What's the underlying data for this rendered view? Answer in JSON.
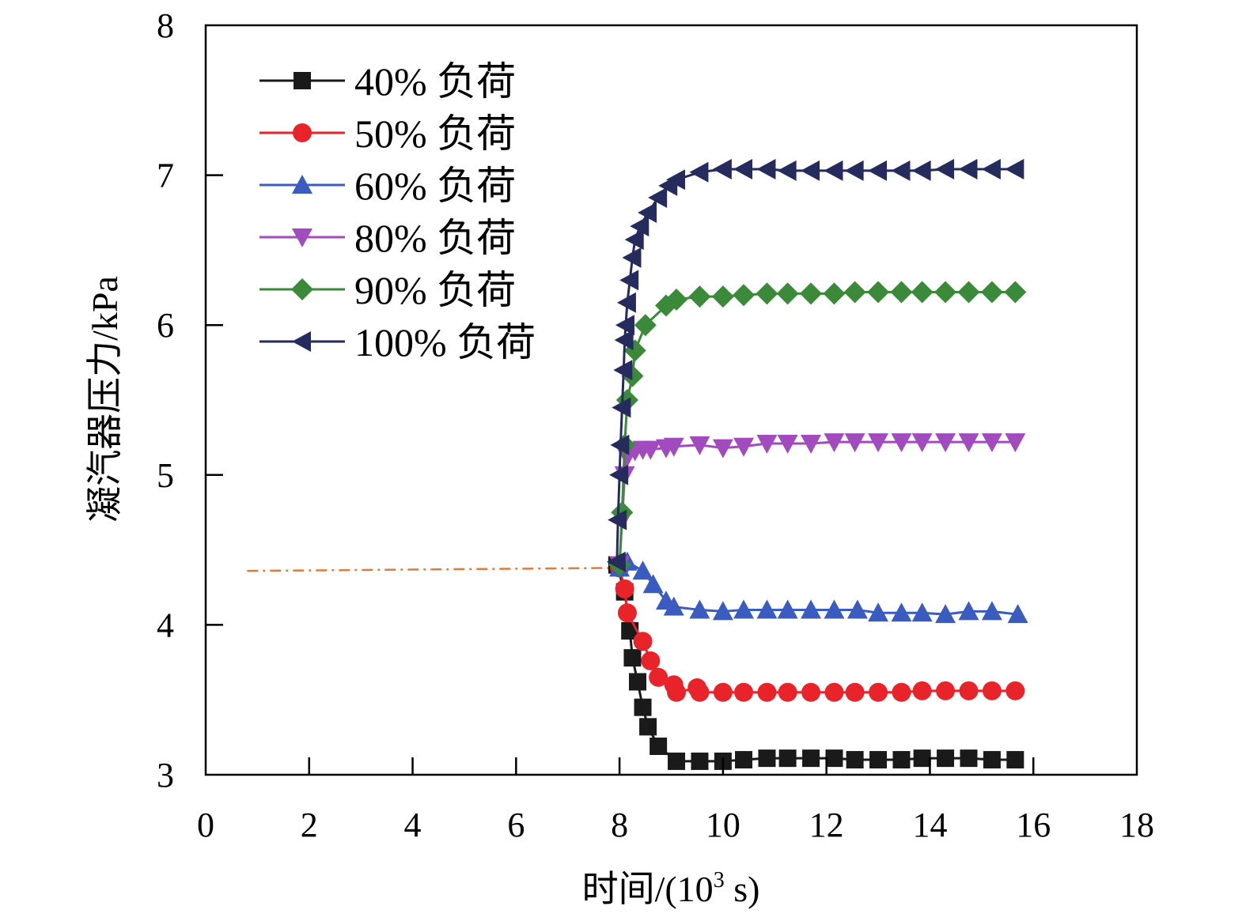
{
  "chart_data": {
    "type": "line",
    "xlabel": "时间/(10",
    "xlabel_sup": "3",
    "xlabel_suffix": " s)",
    "ylabel": "凝汽器压力/kPa",
    "xlim": [
      0,
      18
    ],
    "ylim": [
      3,
      8
    ],
    "xticks": [
      0,
      2,
      4,
      6,
      8,
      10,
      12,
      14,
      16,
      18
    ],
    "yticks": [
      3,
      4,
      5,
      6,
      7,
      8
    ],
    "grid": false,
    "legend_position": "top-left",
    "reference_line": {
      "color": "#e07b39",
      "style": "dash-dot",
      "points": [
        [
          0.8,
          4.36
        ],
        [
          8.0,
          4.38
        ]
      ]
    },
    "series": [
      {
        "name": "40% 负荷",
        "color": "#1a1a1a",
        "marker": "square",
        "points": [
          [
            7.95,
            4.4
          ],
          [
            8.1,
            4.22
          ],
          [
            8.2,
            3.96
          ],
          [
            8.25,
            3.78
          ],
          [
            8.35,
            3.62
          ],
          [
            8.45,
            3.45
          ],
          [
            8.55,
            3.32
          ],
          [
            8.75,
            3.19
          ],
          [
            9.1,
            3.09
          ],
          [
            9.55,
            3.09
          ],
          [
            10.0,
            3.09
          ],
          [
            10.4,
            3.1
          ],
          [
            10.85,
            3.11
          ],
          [
            11.25,
            3.11
          ],
          [
            11.7,
            3.11
          ],
          [
            12.15,
            3.11
          ],
          [
            12.55,
            3.1
          ],
          [
            13.0,
            3.1
          ],
          [
            13.45,
            3.1
          ],
          [
            13.85,
            3.11
          ],
          [
            14.3,
            3.11
          ],
          [
            14.75,
            3.11
          ],
          [
            15.2,
            3.1
          ],
          [
            15.65,
            3.1
          ]
        ]
      },
      {
        "name": "50% 负荷",
        "color": "#e8232a",
        "marker": "circle",
        "points": [
          [
            8.0,
            4.38
          ],
          [
            8.1,
            4.24
          ],
          [
            8.15,
            4.08
          ],
          [
            8.45,
            3.89
          ],
          [
            8.6,
            3.76
          ],
          [
            8.75,
            3.65
          ],
          [
            9.05,
            3.6
          ],
          [
            9.1,
            3.55
          ],
          [
            9.5,
            3.58
          ],
          [
            9.55,
            3.55
          ],
          [
            10.0,
            3.55
          ],
          [
            10.4,
            3.55
          ],
          [
            10.85,
            3.55
          ],
          [
            11.25,
            3.55
          ],
          [
            11.7,
            3.55
          ],
          [
            12.15,
            3.55
          ],
          [
            12.55,
            3.55
          ],
          [
            13.0,
            3.55
          ],
          [
            13.45,
            3.55
          ],
          [
            13.85,
            3.56
          ],
          [
            14.3,
            3.56
          ],
          [
            14.75,
            3.56
          ],
          [
            15.2,
            3.56
          ],
          [
            15.65,
            3.56
          ]
        ]
      },
      {
        "name": "60% 负荷",
        "color": "#3a5bbf",
        "marker": "triangle-up",
        "points": [
          [
            8.0,
            4.38
          ],
          [
            8.15,
            4.42
          ],
          [
            8.45,
            4.36
          ],
          [
            8.65,
            4.27
          ],
          [
            8.9,
            4.16
          ],
          [
            9.05,
            4.12
          ],
          [
            9.55,
            4.1
          ],
          [
            10.0,
            4.09
          ],
          [
            10.4,
            4.1
          ],
          [
            10.85,
            4.1
          ],
          [
            11.25,
            4.1
          ],
          [
            11.7,
            4.1
          ],
          [
            12.15,
            4.1
          ],
          [
            12.6,
            4.1
          ],
          [
            13.0,
            4.08
          ],
          [
            13.45,
            4.08
          ],
          [
            13.85,
            4.08
          ],
          [
            14.3,
            4.07
          ],
          [
            14.75,
            4.09
          ],
          [
            15.2,
            4.09
          ],
          [
            15.7,
            4.07
          ]
        ]
      },
      {
        "name": "80% 负荷",
        "color": "#a24bbf",
        "marker": "triangle-down",
        "points": [
          [
            8.0,
            4.4
          ],
          [
            8.05,
            4.7
          ],
          [
            8.1,
            5.0
          ],
          [
            8.15,
            5.12
          ],
          [
            8.3,
            5.16
          ],
          [
            8.45,
            5.17
          ],
          [
            8.6,
            5.17
          ],
          [
            8.9,
            5.18
          ],
          [
            9.05,
            5.19
          ],
          [
            9.55,
            5.2
          ],
          [
            10.0,
            5.18
          ],
          [
            10.4,
            5.19
          ],
          [
            10.85,
            5.21
          ],
          [
            11.25,
            5.21
          ],
          [
            11.7,
            5.21
          ],
          [
            12.15,
            5.22
          ],
          [
            12.55,
            5.22
          ],
          [
            13.0,
            5.22
          ],
          [
            13.45,
            5.22
          ],
          [
            13.85,
            5.22
          ],
          [
            14.3,
            5.22
          ],
          [
            14.75,
            5.22
          ],
          [
            15.2,
            5.22
          ],
          [
            15.65,
            5.22
          ]
        ]
      },
      {
        "name": "90% 负荷",
        "color": "#3a8a3a",
        "marker": "diamond",
        "points": [
          [
            8.0,
            4.4
          ],
          [
            8.05,
            4.75
          ],
          [
            8.1,
            5.2
          ],
          [
            8.15,
            5.5
          ],
          [
            8.25,
            5.66
          ],
          [
            8.3,
            5.83
          ],
          [
            8.5,
            6.0
          ],
          [
            8.9,
            6.13
          ],
          [
            9.1,
            6.17
          ],
          [
            9.55,
            6.19
          ],
          [
            10.0,
            6.19
          ],
          [
            10.4,
            6.2
          ],
          [
            10.85,
            6.21
          ],
          [
            11.25,
            6.21
          ],
          [
            11.7,
            6.21
          ],
          [
            12.15,
            6.21
          ],
          [
            12.55,
            6.22
          ],
          [
            13.0,
            6.22
          ],
          [
            13.45,
            6.22
          ],
          [
            13.85,
            6.22
          ],
          [
            14.3,
            6.22
          ],
          [
            14.75,
            6.22
          ],
          [
            15.2,
            6.22
          ],
          [
            15.65,
            6.22
          ]
        ]
      },
      {
        "name": "100% 负荷",
        "color": "#252b5c",
        "marker": "triangle-left",
        "points": [
          [
            7.95,
            4.42
          ],
          [
            7.97,
            4.7
          ],
          [
            8.0,
            5.0
          ],
          [
            8.02,
            5.2
          ],
          [
            8.05,
            5.45
          ],
          [
            8.08,
            5.7
          ],
          [
            8.1,
            5.9
          ],
          [
            8.12,
            6.0
          ],
          [
            8.15,
            6.15
          ],
          [
            8.2,
            6.3
          ],
          [
            8.25,
            6.45
          ],
          [
            8.3,
            6.57
          ],
          [
            8.4,
            6.66
          ],
          [
            8.55,
            6.75
          ],
          [
            8.75,
            6.85
          ],
          [
            8.95,
            6.93
          ],
          [
            9.1,
            6.97
          ],
          [
            9.55,
            7.02
          ],
          [
            10.0,
            7.04
          ],
          [
            10.4,
            7.04
          ],
          [
            10.85,
            7.04
          ],
          [
            11.25,
            7.03
          ],
          [
            11.7,
            7.03
          ],
          [
            12.15,
            7.03
          ],
          [
            12.55,
            7.03
          ],
          [
            13.0,
            7.03
          ],
          [
            13.45,
            7.03
          ],
          [
            13.85,
            7.03
          ],
          [
            14.3,
            7.04
          ],
          [
            14.75,
            7.04
          ],
          [
            15.2,
            7.04
          ],
          [
            15.65,
            7.04
          ]
        ]
      }
    ]
  }
}
